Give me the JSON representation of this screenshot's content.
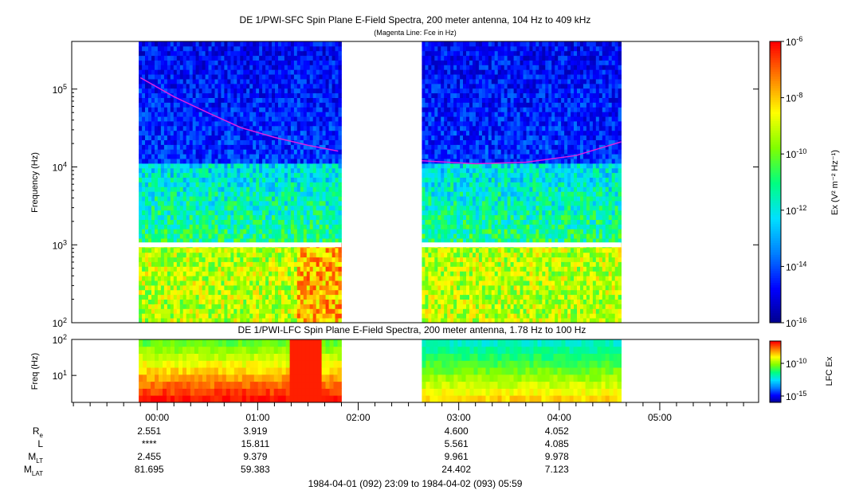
{
  "colors": {
    "background": "#ffffff",
    "colorscale": [
      "#00008b",
      "#0000ff",
      "#0080ff",
      "#00e0ff",
      "#00ff80",
      "#80ff00",
      "#ffff00",
      "#ff8000",
      "#ff0000"
    ],
    "gyrofrequency_line": "#e020e0"
  },
  "chart_data": [
    {
      "type": "heatmap",
      "title": "DE 1/PWI-SFC  Spin Plane E-Field Spectra, 200 meter antenna, 104 Hz to 409 kHz",
      "subtitle": "(Magenta Line: Fce in Hz)",
      "ylabel": "Frequency (Hz)",
      "yscale": "log",
      "ylim": [
        100,
        409000
      ],
      "y_tick_labels": [
        "10^2",
        "10^3",
        "10^4",
        "10^5"
      ],
      "data_intervals": [
        {
          "start": "23:49",
          "end": "01:50",
          "note": "pass 1"
        },
        {
          "start": "02:38",
          "end": "04:37",
          "note": "pass 2"
        }
      ],
      "fce_line_hz": [
        {
          "t": "23:50",
          "f": 140000
        },
        {
          "t": "00:10",
          "f": 80000
        },
        {
          "t": "00:30",
          "f": 50000
        },
        {
          "t": "00:50",
          "f": 32000
        },
        {
          "t": "01:10",
          "f": 24000
        },
        {
          "t": "01:30",
          "f": 19000
        },
        {
          "t": "01:48",
          "f": 16000
        },
        {
          "t": "02:38",
          "f": 12000
        },
        {
          "t": "03:10",
          "f": 11000
        },
        {
          "t": "03:40",
          "f": 11500
        },
        {
          "t": "04:10",
          "f": 14000
        },
        {
          "t": "04:37",
          "f": 21000
        }
      ],
      "colorbar": {
        "label": "Ex (V² m⁻² Hz⁻¹)",
        "scale": "log",
        "range": [
          1e-16,
          1e-06
        ],
        "tick_labels": [
          "10^-6",
          "10^-8",
          "10^-10",
          "10^-12",
          "10^-14",
          "10^-16"
        ]
      }
    },
    {
      "type": "heatmap",
      "title": "DE 1/PWI-LFC  Spin Plane E-Field Spectra, 200 meter antenna, 1.78 Hz to 100 Hz",
      "ylabel": "Freq (Hz)",
      "yscale": "log",
      "ylim": [
        1.78,
        100
      ],
      "y_tick_labels": [
        "10^1",
        "10^2"
      ],
      "data_intervals": [
        {
          "start": "23:49",
          "end": "01:50"
        },
        {
          "start": "02:38",
          "end": "04:37"
        }
      ],
      "colorbar": {
        "label": "LFC Ex",
        "scale": "log",
        "tick_labels": [
          "10^-10",
          "10^-15"
        ]
      }
    }
  ],
  "time_axis": {
    "tick_labels": [
      "00:00",
      "01:00",
      "02:00",
      "03:00",
      "04:00",
      "05:00"
    ],
    "range": "1984-04-01 (092) 23:09 to 1984-04-02 (093) 05:59"
  },
  "ephemeris": {
    "rows": [
      {
        "label_main": "R",
        "label_sub": "e",
        "values": [
          "2.551",
          "3.919",
          "",
          "4.600",
          "4.052"
        ]
      },
      {
        "label_main": "L",
        "label_sub": "",
        "values": [
          "****",
          "15.811",
          "",
          "5.561",
          "4.085"
        ]
      },
      {
        "label_main": "M",
        "label_sub": "LT",
        "values": [
          "2.455",
          "9.379",
          "",
          "9.961",
          "9.978"
        ]
      },
      {
        "label_main": "M",
        "label_sub": "LAT",
        "values": [
          "81.695",
          "59.383",
          "",
          "24.402",
          "7.123"
        ]
      }
    ],
    "footer": "1984-04-01 (092) 23:09 to 1984-04-02 (093) 05:59"
  }
}
